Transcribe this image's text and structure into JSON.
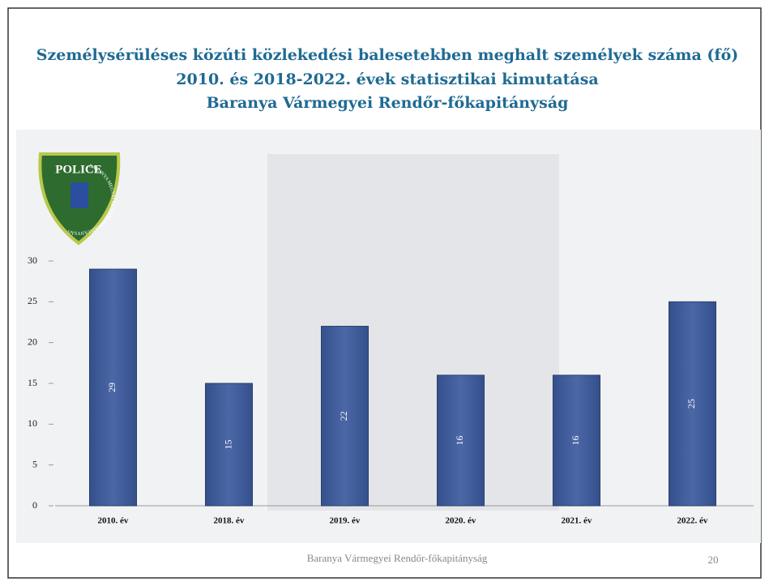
{
  "chart_data": {
    "type": "bar",
    "title": [
      "Személysérüléses közúti közlekedési balesetekben meghalt személyek száma (fő)",
      "2010. és 2018-2022. évek statisztikai kimutatása",
      "Baranya Vármegyei Rendőr-főkapitányság"
    ],
    "categories": [
      "2010. év",
      "2018. év",
      "2019. év",
      "2020. év",
      "2021. év",
      "2022. év"
    ],
    "values": [
      29,
      15,
      22,
      16,
      16,
      25
    ],
    "color": "#3f5b99",
    "ylim": [
      0,
      30
    ],
    "yticks": [
      0,
      5,
      10,
      15,
      20,
      25,
      30
    ],
    "grid": false
  },
  "logo": {
    "text": "POLICE",
    "ring": "BARANYA MEGYEI RENDŐR-FŐKAPITÁNYSÁG"
  },
  "footer": {
    "text": "Baranya Vármegyei Rendőr-főkapitányság",
    "page": 20
  }
}
